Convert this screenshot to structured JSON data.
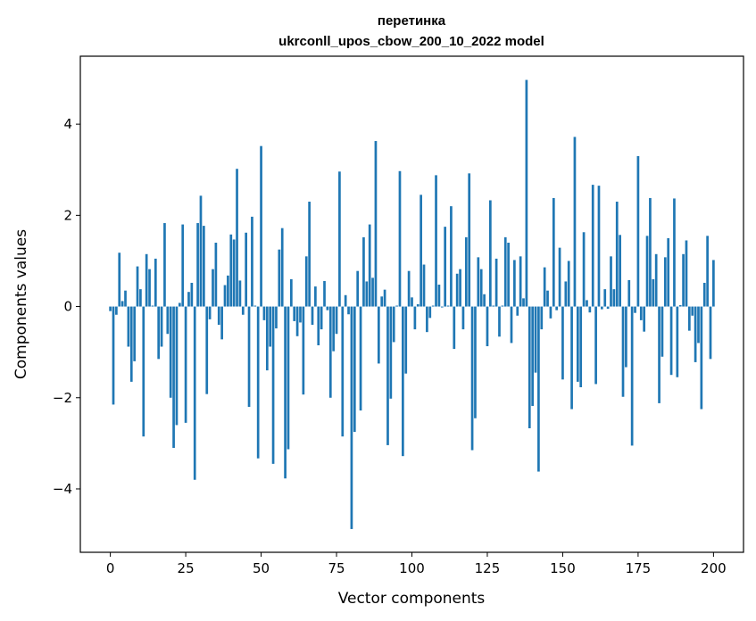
{
  "chart_data": {
    "type": "bar",
    "title_line1": "перетинка",
    "title_line2": "ukrconll_upos_cbow_200_10_2022 model",
    "xlabel": "Vector components",
    "ylabel": "Components values",
    "xlim": [
      -9.95,
      209.95
    ],
    "ylim": [
      -5.39,
      5.49
    ],
    "xticks": [
      0,
      25,
      50,
      75,
      100,
      125,
      150,
      175,
      200
    ],
    "xtick_labels": [
      "0",
      "25",
      "50",
      "75",
      "100",
      "125",
      "150",
      "175",
      "200"
    ],
    "yticks": [
      -4,
      -2,
      0,
      2,
      4
    ],
    "ytick_labels": [
      "−4",
      "−2",
      "0",
      "2",
      "4"
    ],
    "bar_color": "#1f77b4",
    "grid": false,
    "values": [
      -0.1,
      -2.15,
      -0.18,
      1.18,
      0.12,
      0.35,
      -0.88,
      -1.65,
      -1.2,
      0.88,
      0.38,
      -2.85,
      1.15,
      0.82,
      0.02,
      1.05,
      -1.15,
      -0.88,
      1.83,
      -0.6,
      -2.0,
      -3.1,
      -2.6,
      0.08,
      1.8,
      -2.55,
      0.32,
      0.52,
      -3.8,
      1.83,
      2.43,
      1.77,
      -1.92,
      -0.28,
      0.82,
      1.4,
      -0.4,
      -0.72,
      0.47,
      0.68,
      1.58,
      1.47,
      3.02,
      0.57,
      -0.18,
      1.62,
      -2.2,
      1.97,
      0.02,
      -3.33,
      3.52,
      -0.3,
      -1.4,
      -0.88,
      -3.45,
      -0.48,
      1.25,
      1.72,
      -3.77,
      -3.13,
      0.6,
      -0.32,
      -0.65,
      -0.35,
      -1.93,
      1.1,
      2.3,
      -0.4,
      0.44,
      -0.85,
      -0.5,
      0.56,
      -0.08,
      -2.0,
      -0.98,
      -0.6,
      2.96,
      -2.85,
      0.25,
      -0.17,
      -4.88,
      -2.75,
      0.78,
      -2.28,
      1.52,
      0.55,
      1.8,
      0.63,
      3.63,
      -1.25,
      0.22,
      0.37,
      -3.04,
      -2.02,
      -0.78,
      0.02,
      2.97,
      -3.28,
      -1.47,
      0.78,
      0.2,
      -0.5,
      0.05,
      2.45,
      0.92,
      -0.56,
      -0.25,
      0.02,
      2.88,
      0.48,
      -0.02,
      1.75,
      0.02,
      2.2,
      -0.93,
      0.72,
      0.82,
      -0.5,
      1.52,
      2.92,
      -3.15,
      -2.45,
      1.08,
      0.82,
      0.27,
      -0.87,
      2.33,
      0.02,
      1.05,
      -0.66,
      0.02,
      1.52,
      1.4,
      -0.8,
      1.02,
      -0.2,
      1.1,
      0.18,
      4.97,
      -2.67,
      -2.18,
      -1.45,
      -3.62,
      -0.5,
      0.86,
      0.35,
      -0.26,
      2.38,
      -0.08,
      1.29,
      -1.6,
      0.55,
      1.0,
      -2.25,
      3.72,
      -1.65,
      -1.77,
      1.63,
      0.14,
      -0.13,
      2.67,
      -1.7,
      2.65,
      -0.06,
      0.38,
      -0.05,
      1.1,
      0.38,
      2.3,
      1.57,
      -1.98,
      -1.33,
      0.58,
      -3.05,
      -0.14,
      3.3,
      -0.3,
      -0.55,
      1.55,
      2.38,
      0.6,
      1.15,
      -2.12,
      -1.1,
      1.08,
      1.5,
      -1.5,
      2.37,
      -1.55,
      0.03,
      1.15,
      1.45,
      -0.53,
      -0.2,
      -1.22,
      -0.8,
      -2.25,
      0.52,
      1.55,
      -1.15,
      1.02
    ]
  }
}
